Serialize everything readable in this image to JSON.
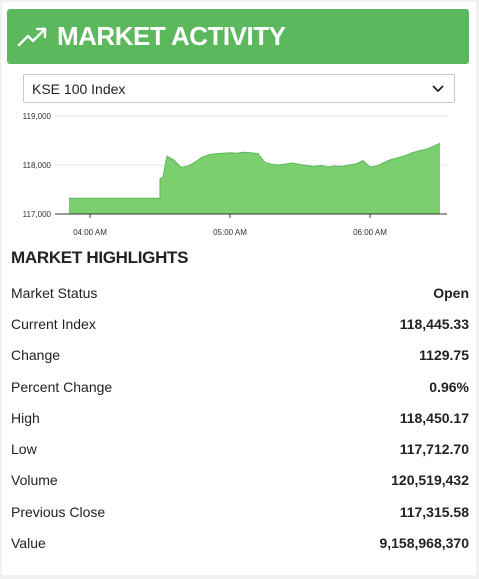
{
  "header": {
    "title": "MARKET ACTIVITY",
    "icon": "trend-up-icon"
  },
  "index_select": {
    "selected": "KSE 100 Index"
  },
  "chart_data": {
    "type": "area",
    "color": "#7ccf6e",
    "ylim": [
      117000,
      119000
    ],
    "y_ticks": [
      117000,
      118000,
      119000
    ],
    "y_tick_labels": [
      "117,000",
      "118,000",
      "119,000"
    ],
    "x_range": [
      3.75,
      6.55
    ],
    "x_ticks": [
      4.0,
      5.0,
      6.0
    ],
    "x_tick_labels": [
      "04:00 AM",
      "05:00 AM",
      "06:00 AM"
    ],
    "grid": "horizontal",
    "x": [
      3.85,
      4.5,
      4.5,
      4.52,
      4.55,
      4.6,
      4.65,
      4.7,
      4.75,
      4.8,
      4.85,
      4.9,
      4.95,
      5.0,
      5.05,
      5.1,
      5.15,
      5.2,
      5.25,
      5.3,
      5.35,
      5.4,
      5.45,
      5.5,
      5.55,
      5.6,
      5.65,
      5.7,
      5.75,
      5.8,
      5.85,
      5.9,
      5.95,
      6.0,
      6.05,
      6.1,
      6.15,
      6.2,
      6.25,
      6.3,
      6.35,
      6.4,
      6.45,
      6.5
    ],
    "y": [
      117320,
      117320,
      117720,
      117750,
      118180,
      118100,
      117950,
      117980,
      118060,
      118160,
      118210,
      118230,
      118240,
      118250,
      118240,
      118260,
      118250,
      118230,
      118050,
      118010,
      118000,
      118020,
      118040,
      118010,
      117990,
      117970,
      117990,
      117960,
      117980,
      117970,
      118000,
      118020,
      118090,
      117960,
      117980,
      118050,
      118110,
      118150,
      118190,
      118250,
      118290,
      118320,
      118380,
      118445
    ]
  },
  "highlights": {
    "title": "MARKET HIGHLIGHTS",
    "rows": [
      {
        "label": "Market Status",
        "value": "Open"
      },
      {
        "label": "Current Index",
        "value": "118,445.33"
      },
      {
        "label": "Change",
        "value": "1129.75"
      },
      {
        "label": "Percent Change",
        "value": "0.96%"
      },
      {
        "label": "High",
        "value": "118,450.17"
      },
      {
        "label": "Low",
        "value": "117,712.70"
      },
      {
        "label": "Volume",
        "value": "120,519,432"
      },
      {
        "label": "Previous Close",
        "value": "117,315.58"
      },
      {
        "label": "Value",
        "value": "9,158,968,370"
      }
    ]
  }
}
